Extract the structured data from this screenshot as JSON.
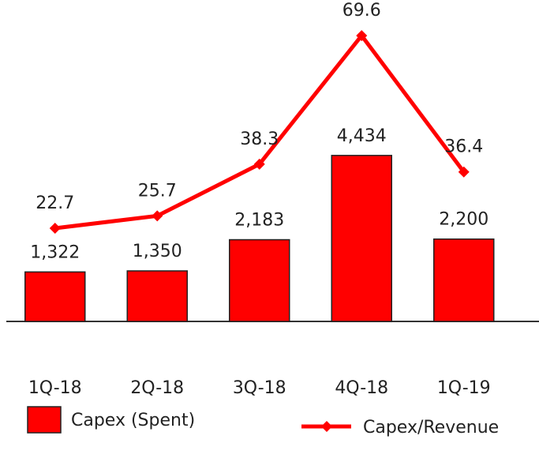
{
  "chart_data": {
    "type": "bar_line",
    "categories": [
      "1Q-18",
      "2Q-18",
      "3Q-18",
      "4Q-18",
      "1Q-19"
    ],
    "series": [
      {
        "name": "Capex (Spent)",
        "color": "#ff0000",
        "values": [
          1322,
          1350,
          2183,
          4434,
          2200
        ],
        "value_labels": [
          "1,322",
          "1,350",
          "2,183",
          "4,434",
          "2,200"
        ]
      },
      {
        "name": "Capex/Revenue",
        "color": "#ff0000",
        "axis": "y2",
        "values": [
          22.7,
          25.7,
          38.3,
          69.6,
          36.4
        ]
      }
    ],
    "ylim": [
      0,
      5000
    ],
    "y2lim": [
      0,
      70
    ]
  }
}
